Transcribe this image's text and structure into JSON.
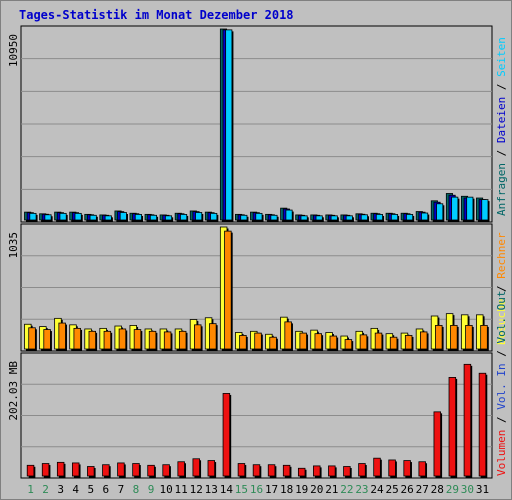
{
  "chart_data": {
    "type": "bar",
    "title": "Tages-Statistik im Monat Dezember 2018",
    "days": [
      "1",
      "2",
      "3",
      "4",
      "5",
      "6",
      "7",
      "8",
      "9",
      "10",
      "11",
      "12",
      "13",
      "14",
      "15",
      "16",
      "17",
      "18",
      "19",
      "20",
      "21",
      "22",
      "23",
      "24",
      "25",
      "26",
      "27",
      "28",
      "29",
      "30",
      "31"
    ],
    "weekend_days": [
      "1",
      "2",
      "8",
      "9",
      "15",
      "16",
      "22",
      "23",
      "29",
      "30"
    ],
    "colors": {
      "title": "#0000cc",
      "day_label": "#000000",
      "weekend_label": "#2e8b57",
      "hits": "#006666",
      "files": "#0000cc",
      "pages": "#00ccff",
      "visits": "#ffff33",
      "sites": "#ff8800",
      "kbytes_in": "#2244cc",
      "kbytes_out": "#006666",
      "volume": "#ee1111"
    },
    "panels": [
      {
        "id": "top",
        "ylabel": "10950",
        "ymax": 10950,
        "series": [
          {
            "name": "Anfragen",
            "color_key": "hits",
            "values": [
              452,
              356,
              452,
              452,
              324,
              291,
              518,
              388,
              324,
              291,
              388,
              518,
              452,
              10950,
              324,
              452,
              324,
              680,
              291,
              291,
              291,
              291,
              356,
              388,
              388,
              388,
              485,
              1100,
              1520,
              1360,
              1260
            ]
          },
          {
            "name": "Dateien",
            "color_key": "files",
            "values": [
              420,
              330,
              420,
              420,
              300,
              270,
              480,
              360,
              300,
              270,
              360,
              480,
              420,
              10900,
              300,
              420,
              300,
              630,
              270,
              270,
              270,
              270,
              330,
              360,
              360,
              360,
              450,
              1020,
              1420,
              1260,
              1170
            ]
          },
          {
            "name": "Seiten",
            "color_key": "pages",
            "values": [
              380,
              300,
              380,
              380,
              270,
              240,
              430,
              320,
              270,
              240,
              320,
              430,
              380,
              10900,
              270,
              380,
              270,
              570,
              240,
              240,
              240,
              240,
              300,
              320,
              320,
              320,
              400,
              930,
              1310,
              1310,
              1170
            ]
          }
        ],
        "legend": [
          "Anfragen",
          "Dateien",
          "Seiten"
        ]
      },
      {
        "id": "middle",
        "ylabel": "1035",
        "ymax": 1035,
        "series": [
          {
            "name": "Besuche",
            "color_key": "visits",
            "values": [
              210,
              190,
              260,
              205,
              170,
              175,
              195,
              200,
              170,
              170,
              170,
              250,
              265,
              1035,
              140,
              150,
              125,
              270,
              150,
              160,
              140,
              110,
              150,
              175,
              130,
              135,
              170,
              280,
              300,
              290,
              290
            ]
          },
          {
            "name": "Rechner",
            "color_key": "sites",
            "values": [
              180,
              165,
              220,
              175,
              150,
              150,
              170,
              165,
              150,
              145,
              150,
              205,
              215,
              1000,
              115,
              135,
              100,
              230,
              135,
              130,
              110,
              80,
              120,
              135,
              100,
              115,
              145,
              200,
              200,
              200,
              200
            ]
          }
        ],
        "legend": [
          "Besuche",
          "Rechner"
        ]
      },
      {
        "id": "bottom",
        "ylabel": "202.03 MB",
        "ymax": 202.03,
        "series": [
          {
            "name": "Volumen",
            "color_key": "volume",
            "values": [
              18,
              21,
              23,
              22,
              16,
              19,
              22,
              21,
              18,
              19,
              24,
              29,
              26,
              139,
              21,
              19,
              19,
              18,
              13,
              17,
              17,
              16,
              21,
              30,
              27,
              26,
              24,
              108,
              166,
              188,
              173
            ]
          }
        ],
        "legend": [
          "Volumen",
          "Vol. In",
          "Vol. Out"
        ]
      }
    ],
    "legend_colors_top": [
      "hits",
      "files",
      "pages"
    ],
    "legend_colors_middle": [
      "visits",
      "sites"
    ],
    "legend_colors_bottom": [
      "volume",
      "kbytes_in",
      "kbytes_out"
    ],
    "grid": true
  }
}
